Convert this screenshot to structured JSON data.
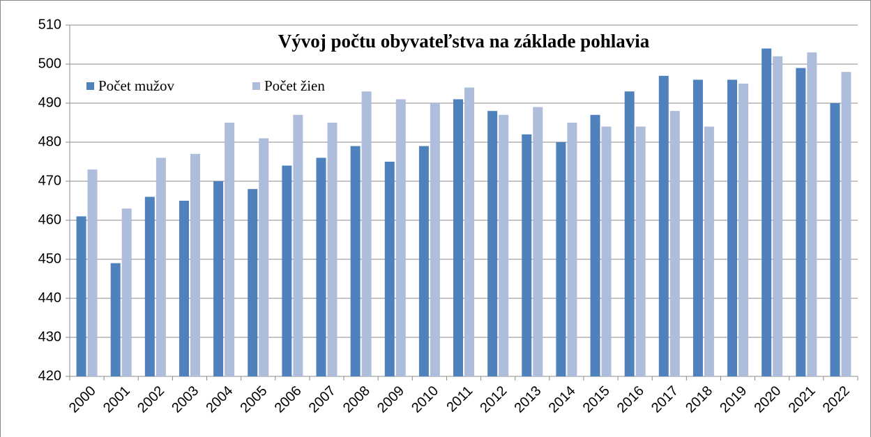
{
  "chart_data": {
    "type": "bar",
    "title": "Vývoj počtu obyvateľstva na základe pohlavia",
    "categories": [
      "2000",
      "2001",
      "2002",
      "2003",
      "2004",
      "2005",
      "2006",
      "2007",
      "2008",
      "2009",
      "2010",
      "2011",
      "2012",
      "2013",
      "2014",
      "2015",
      "2016",
      "2017",
      "2018",
      "2019",
      "2020",
      "2021",
      "2022"
    ],
    "series": [
      {
        "name": "Počet mužov",
        "color": "#4f81bd",
        "values": [
          461,
          449,
          466,
          465,
          470,
          468,
          474,
          476,
          479,
          475,
          479,
          491,
          488,
          482,
          480,
          487,
          493,
          497,
          496,
          496,
          504,
          499,
          490
        ]
      },
      {
        "name": "Počet žien",
        "color": "#aebddb",
        "values": [
          473,
          463,
          476,
          477,
          485,
          481,
          487,
          485,
          493,
          491,
          490,
          494,
          487,
          489,
          485,
          484,
          484,
          488,
          484,
          495,
          502,
          503,
          498
        ]
      }
    ],
    "ylim": [
      420,
      510
    ],
    "yticks": [
      420,
      430,
      440,
      450,
      460,
      470,
      480,
      490,
      500,
      510
    ],
    "grid": true,
    "legend": "upper left"
  }
}
